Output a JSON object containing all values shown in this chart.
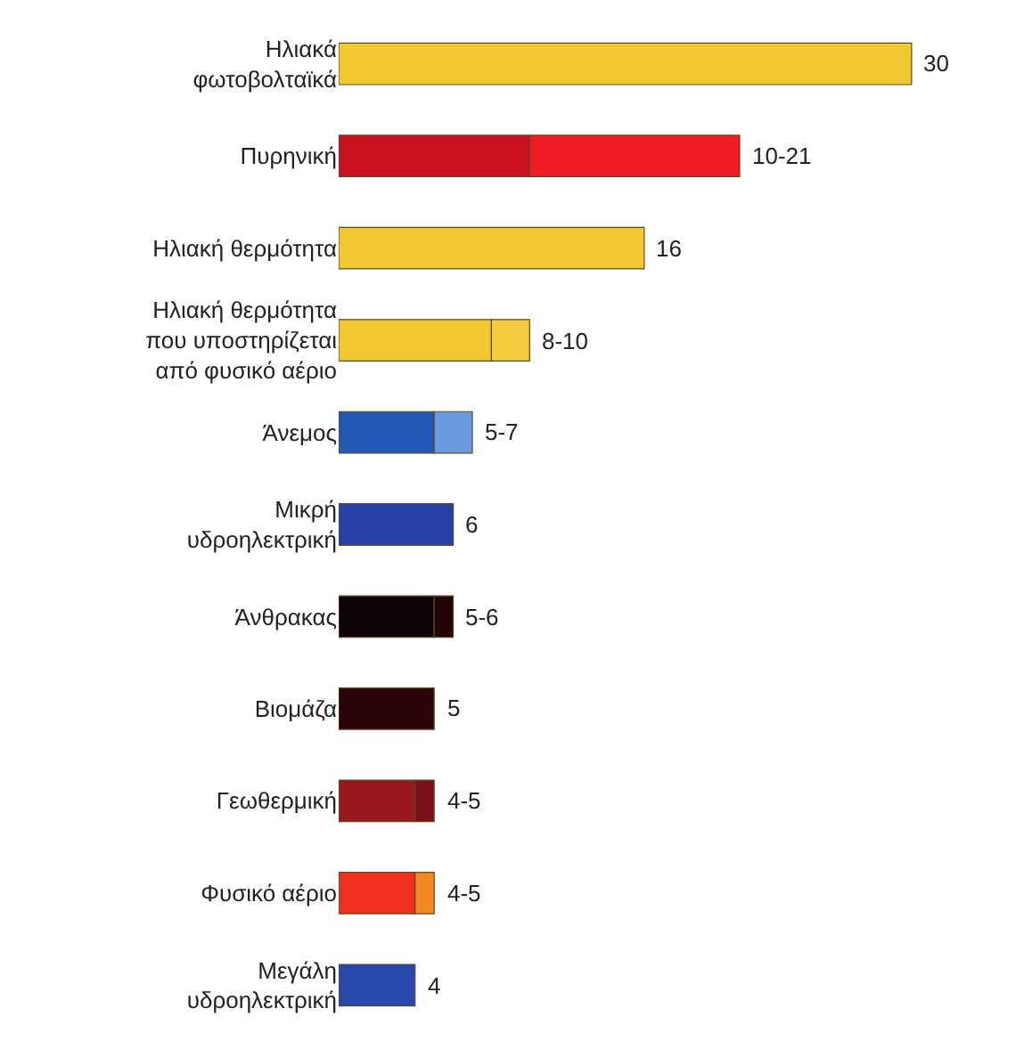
{
  "chart_data": {
    "type": "bar",
    "orientation": "horizontal",
    "stacked": true,
    "categories": [
      "Ηλιακά\nφωτοβολταϊκά",
      "Πυρηνική",
      "Ηλιακή θερμότητα",
      "Ηλιακή θερμότητα\nπου υποστηρίζεται\nαπό φυσικό αέριο",
      "Άνεμος",
      "Μικρή\nυδροηλεκτρική",
      "Άνθρακας",
      "Βιομάζα",
      "Γεωθερμική",
      "Φυσικό αέριο",
      "Μεγάλη\nυδροηλεκτρική"
    ],
    "series": [
      {
        "colors": [
          "#f2c831",
          "#c8101e",
          "#f2c831",
          "#f2c831",
          "#2458b8",
          "#2840a8",
          "#0c0406",
          "#2a0408",
          "#981820",
          "#f0301c",
          "#2848b0"
        ],
        "values": [
          30,
          10,
          16,
          8,
          5,
          6,
          5,
          5,
          4,
          4,
          4
        ],
        "value_labels": [
          "30",
          null,
          "16",
          null,
          null,
          "6",
          null,
          "5",
          null,
          null,
          "4"
        ]
      },
      {
        "colors": [
          null,
          "#f01c24",
          null,
          "#f4cc40",
          "#6a9ae0",
          null,
          "#240608",
          null,
          "#7a1018",
          "#f08a20",
          null
        ],
        "values": [
          null,
          11,
          null,
          2,
          2,
          null,
          1,
          null,
          1,
          1,
          null
        ],
        "value_labels": [
          null,
          "10-21",
          null,
          "8-10",
          "5-7",
          null,
          "5-6",
          null,
          "4-5",
          "4-5",
          null
        ]
      }
    ]
  }
}
